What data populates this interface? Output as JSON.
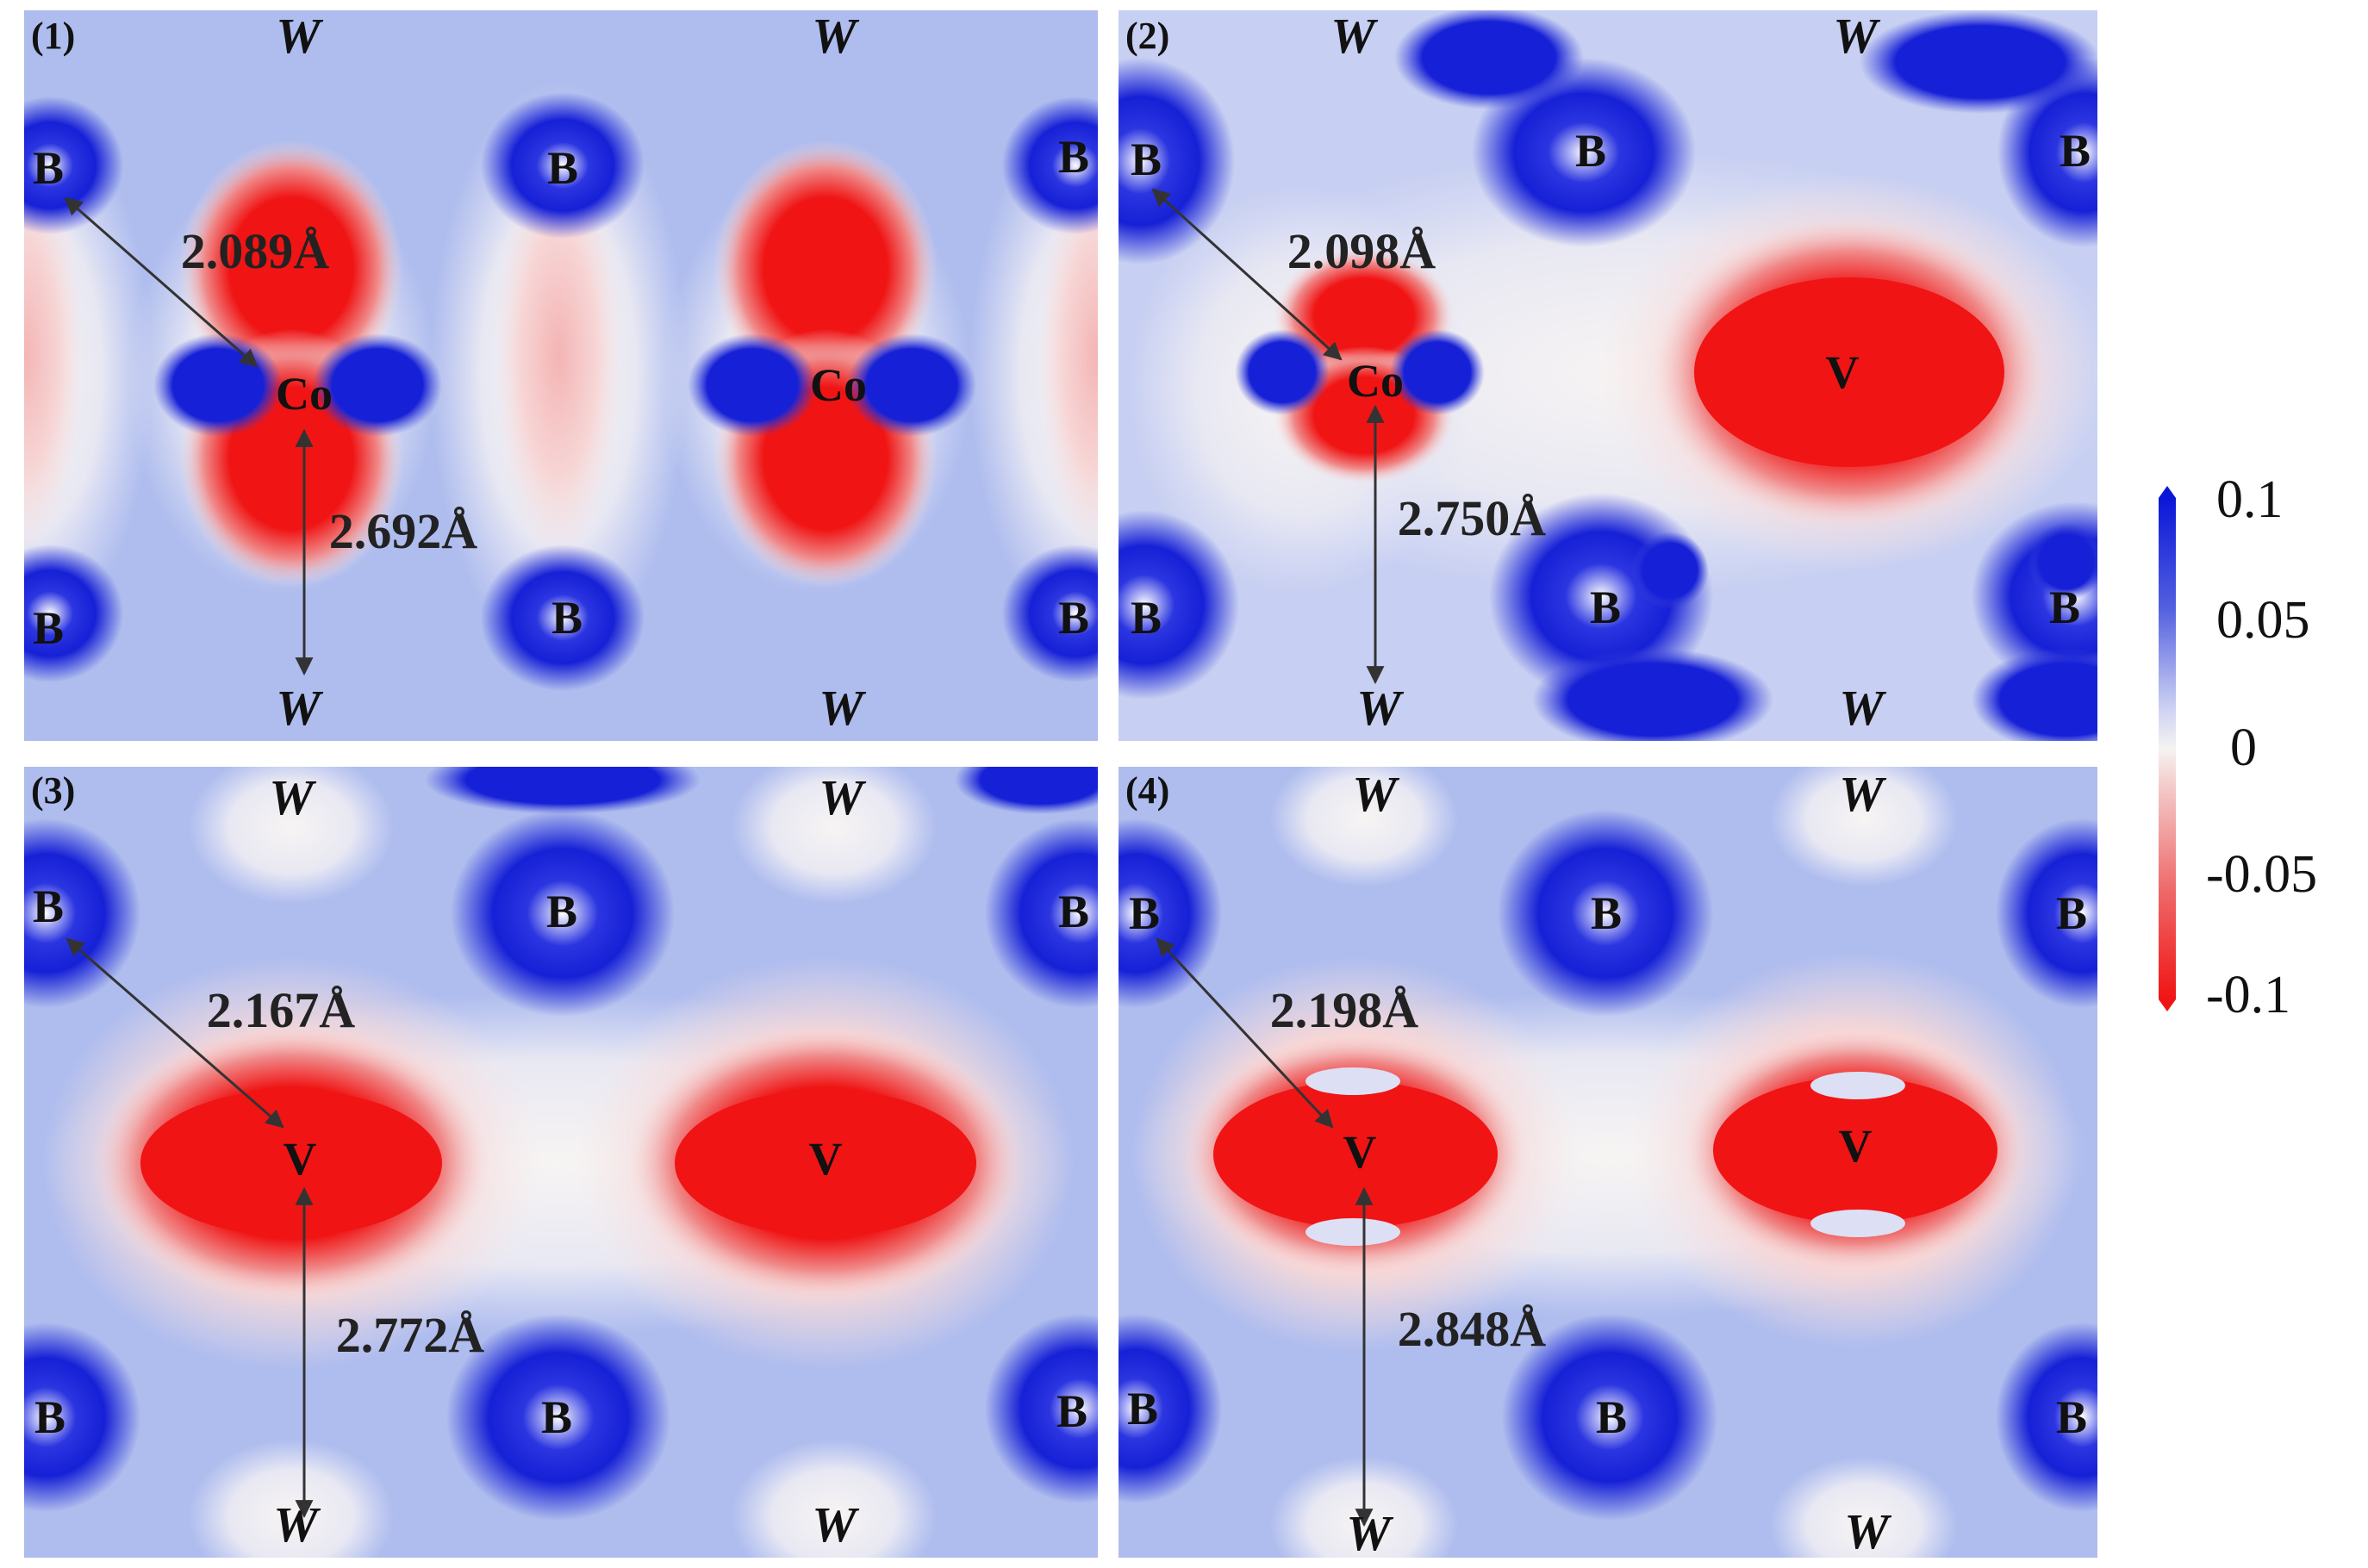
{
  "panels": [
    {
      "index": "(1)",
      "atoms": {
        "b_tl": "B",
        "b_tc": "B",
        "b_tr": "B",
        "b_bl": "B",
        "b_bc": "B",
        "b_br": "B",
        "center_left": "Co",
        "center_right": "Co"
      },
      "w": {
        "top_left": "W",
        "top_right": "W",
        "bottom_left": "W",
        "bottom_right": "W"
      },
      "distances": {
        "diagonal": "2.089Å",
        "vertical": "2.692Å"
      }
    },
    {
      "index": "(2)",
      "atoms": {
        "b_tl": "B",
        "b_tc": "B",
        "b_tr": "B",
        "b_bl": "B",
        "b_bc": "B",
        "b_br": "B",
        "center_left": "Co",
        "center_right": "V"
      },
      "w": {
        "top_left": "W",
        "top_right": "W",
        "bottom_left": "W",
        "bottom_right": "W"
      },
      "distances": {
        "diagonal": "2.098Å",
        "vertical": "2.750Å"
      }
    },
    {
      "index": "(3)",
      "atoms": {
        "b_tl": "B",
        "b_tc": "B",
        "b_tr": "B",
        "b_bl": "B",
        "b_bc": "B",
        "b_br": "B",
        "center_left": "V",
        "center_right": "V"
      },
      "w": {
        "top_left": "W",
        "top_right": "W",
        "bottom_left": "W",
        "bottom_right": "W"
      },
      "distances": {
        "diagonal": "2.167Å",
        "vertical": "2.772Å"
      }
    },
    {
      "index": "(4)",
      "atoms": {
        "b_tl": "B",
        "b_tc": "B",
        "b_tr": "B",
        "b_bl": "B",
        "b_bc": "B",
        "b_br": "B",
        "center_left": "V",
        "center_right": "V"
      },
      "w": {
        "top_left": "W",
        "top_right": "W",
        "bottom_left": "W",
        "bottom_right": "W"
      },
      "distances": {
        "diagonal": "2.198Å",
        "vertical": "2.848Å"
      }
    }
  ],
  "colorbar": {
    "ticks": [
      "0.1",
      "0.05",
      "0",
      "-0.05",
      "-0.1"
    ],
    "max": 0.1,
    "min": -0.1,
    "colors": {
      "positive": "#0a16d8",
      "zero": "#f5f3f1",
      "negative": "#f01414"
    }
  }
}
